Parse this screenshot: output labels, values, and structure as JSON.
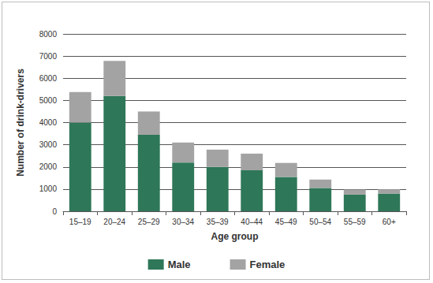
{
  "chart_data": {
    "type": "bar",
    "stacked": true,
    "x_label": "Age group",
    "y_label": "Number of drink-drivers",
    "categories": [
      "15–19",
      "20–24",
      "25–29",
      "30–34",
      "35–39",
      "40–44",
      "45–49",
      "50–54",
      "55–59",
      "60+"
    ],
    "series": [
      {
        "name": "Male",
        "color": "#2e7758",
        "values": [
          4000,
          5200,
          3450,
          2200,
          2000,
          1850,
          1550,
          1050,
          750,
          800
        ]
      },
      {
        "name": "Female",
        "color": "#a3a3a3",
        "values": [
          1380,
          1580,
          1050,
          900,
          780,
          750,
          630,
          380,
          230,
          190
        ]
      }
    ],
    "ylim": [
      0,
      8000
    ],
    "yticks": [
      0,
      1000,
      2000,
      3000,
      4000,
      5000,
      6000,
      7000,
      8000
    ],
    "grid": true,
    "legend": "bottom"
  }
}
